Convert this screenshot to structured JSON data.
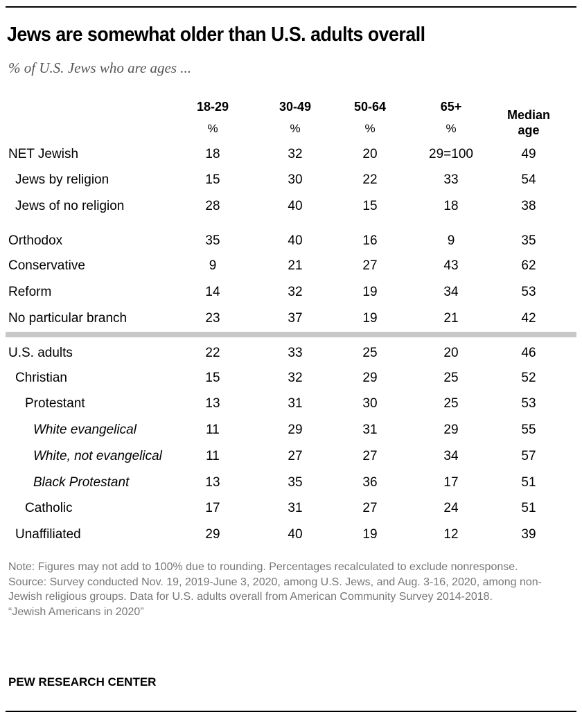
{
  "chart_data": {
    "type": "table",
    "title": "Jews are somewhat older than U.S. adults overall",
    "subtitle": "% of U.S. Jews who are ages ...",
    "columns": [
      {
        "label": "18-29",
        "unit": "%"
      },
      {
        "label": "30-49",
        "unit": "%"
      },
      {
        "label": "50-64",
        "unit": "%"
      },
      {
        "label": "65+",
        "unit": "%"
      },
      {
        "label": "Median age",
        "unit": ""
      }
    ],
    "rows": [
      {
        "label": "NET Jewish",
        "indent": 0,
        "italic": false,
        "values": [
          "18",
          "32",
          "20",
          "29=100",
          "49"
        ]
      },
      {
        "label": "Jews by religion",
        "indent": 1,
        "italic": false,
        "values": [
          "15",
          "30",
          "22",
          "33",
          "54"
        ]
      },
      {
        "label": "Jews of no religion",
        "indent": 1,
        "italic": false,
        "values": [
          "28",
          "40",
          "15",
          "18",
          "38"
        ]
      },
      {
        "label": "Orthodox",
        "indent": 0,
        "italic": false,
        "values": [
          "35",
          "40",
          "16",
          "9",
          "35"
        ]
      },
      {
        "label": "Conservative",
        "indent": 0,
        "italic": false,
        "values": [
          "9",
          "21",
          "27",
          "43",
          "62"
        ]
      },
      {
        "label": "Reform",
        "indent": 0,
        "italic": false,
        "values": [
          "14",
          "32",
          "19",
          "34",
          "53"
        ]
      },
      {
        "label": "No particular branch",
        "indent": 0,
        "italic": false,
        "values": [
          "23",
          "37",
          "19",
          "21",
          "42"
        ]
      },
      {
        "label": "U.S. adults",
        "indent": 0,
        "italic": false,
        "values": [
          "22",
          "33",
          "25",
          "20",
          "46"
        ]
      },
      {
        "label": "Christian",
        "indent": 1,
        "italic": false,
        "values": [
          "15",
          "32",
          "29",
          "25",
          "52"
        ]
      },
      {
        "label": "Protestant",
        "indent": 2,
        "italic": false,
        "values": [
          "13",
          "31",
          "30",
          "25",
          "53"
        ]
      },
      {
        "label": "White evangelical",
        "indent": 3,
        "italic": true,
        "values": [
          "11",
          "29",
          "31",
          "29",
          "55"
        ]
      },
      {
        "label": "White, not evangelical",
        "indent": 3,
        "italic": true,
        "values": [
          "11",
          "27",
          "27",
          "34",
          "57"
        ]
      },
      {
        "label": "Black Protestant",
        "indent": 3,
        "italic": true,
        "values": [
          "13",
          "35",
          "36",
          "17",
          "51"
        ]
      },
      {
        "label": "Catholic",
        "indent": 2,
        "italic": false,
        "values": [
          "17",
          "31",
          "27",
          "24",
          "51"
        ]
      },
      {
        "label": "Unaffiliated",
        "indent": 1,
        "italic": false,
        "values": [
          "29",
          "40",
          "19",
          "12",
          "39"
        ]
      }
    ]
  },
  "header": {
    "median_line1": "Median",
    "median_line2": "age"
  },
  "notes": {
    "note": "Note: Figures may not add to 100% due to rounding. Percentages recalculated to exclude nonresponse.",
    "source": "Source: Survey conducted Nov. 19, 2019-June 3, 2020, among U.S. Jews, and Aug. 3-16, 2020, among non-Jewish religious groups. Data for U.S. adults overall from American Community Survey 2014-2018.",
    "report": "“Jewish Americans in 2020”"
  },
  "brand": "PEW RESEARCH CENTER"
}
